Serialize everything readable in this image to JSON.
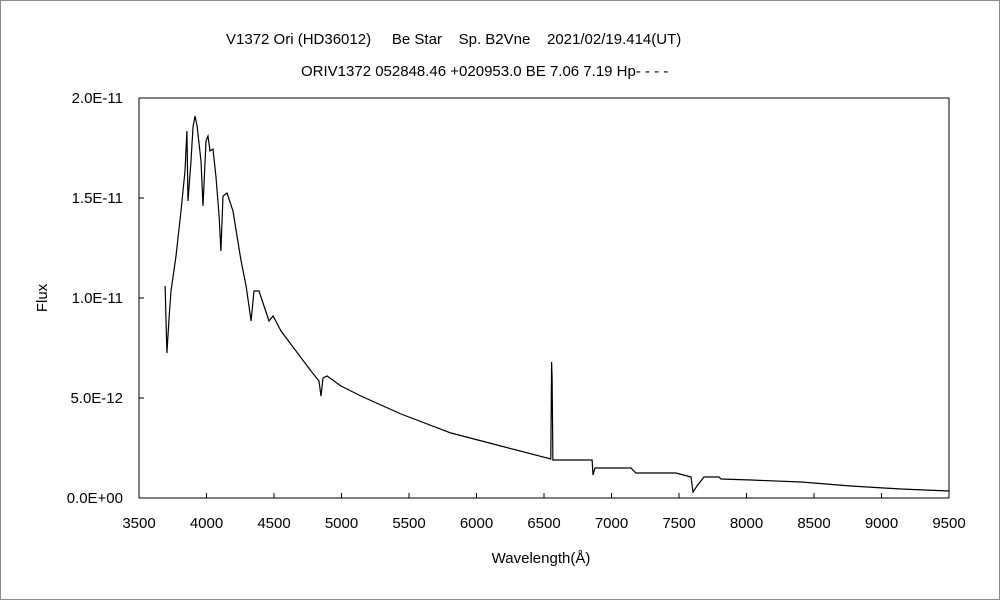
{
  "chart_data": {
    "type": "line",
    "title": "V1372 Ori (HD36012)     Be Star    Sp. B2Vne    2021/02/19.414(UT)",
    "subtitle": "ORIV1372 052848.46 +020953.0 BE 7.06 7.19 Hp- - - -",
    "xlabel": "Wavelength(Å)",
    "ylabel": "Flux",
    "xlim": [
      3500,
      9500
    ],
    "ylim": [
      0,
      2e-11
    ],
    "xticks": [
      "3500",
      "4000",
      "4500",
      "5000",
      "5500",
      "6000",
      "6500",
      "7000",
      "7500",
      "8000",
      "8500",
      "9000",
      "9500"
    ],
    "yticks": [
      "0.0E+00",
      "5.0E-12",
      "1.0E-11",
      "1.5E-11",
      "2.0E-11"
    ],
    "grid": false,
    "legend": "none",
    "series": [
      {
        "name": "Flux",
        "color": "#000000",
        "x": [
          3693,
          3707,
          3722,
          3737,
          3774,
          3811,
          3841,
          3855,
          3863,
          3885,
          3900,
          3915,
          3930,
          3959,
          3974,
          3996,
          4011,
          4026,
          4048,
          4070,
          4093,
          4107,
          4122,
          4152,
          4196,
          4226,
          4256,
          4293,
          4330,
          4352,
          4389,
          4426,
          4463,
          4493,
          4552,
          4663,
          4774,
          4833,
          4848,
          4863,
          4893,
          4996,
          5144,
          5441,
          5811,
          6181,
          6550,
          6556,
          6560,
          6566,
          6856,
          6863,
          6878,
          7144,
          7181,
          7478,
          7589,
          7604,
          7633,
          7685,
          7796,
          7811,
          8033,
          8404,
          8774,
          9144,
          9500
        ],
        "y": [
          1.06e-11,
          7.25e-12,
          8.95e-12,
          1.035e-11,
          1.21e-11,
          1.435e-11,
          1.635e-11,
          1.835e-11,
          1.485e-11,
          1.685e-11,
          1.855e-11,
          1.91e-11,
          1.86e-11,
          1.685e-11,
          1.46e-11,
          1.785e-11,
          1.81e-11,
          1.735e-11,
          1.745e-11,
          1.61e-11,
          1.41e-11,
          1.235e-11,
          1.51e-11,
          1.525e-11,
          1.435e-11,
          1.31e-11,
          1.185e-11,
          1.06e-11,
          8.85e-12,
          1.035e-11,
          1.035e-11,
          9.6e-12,
          8.85e-12,
          9.1e-12,
          8.35e-12,
          7.35e-12,
          6.35e-12,
          5.85e-12,
          5.1e-12,
          6e-12,
          6.1e-12,
          5.6e-12,
          5.1e-12,
          4.2e-12,
          3.25e-12,
          2.6e-12,
          1.95e-12,
          6.8e-12,
          6e-12,
          1.9e-12,
          1.9e-12,
          1.15e-12,
          1.5e-12,
          1.5e-12,
          1.25e-12,
          1.25e-12,
          1.05e-12,
          3e-13,
          6e-13,
          1.05e-12,
          1.05e-12,
          9.5e-13,
          9e-13,
          8e-13,
          6e-13,
          4.5e-13,
          3.5e-13
        ]
      }
    ]
  }
}
